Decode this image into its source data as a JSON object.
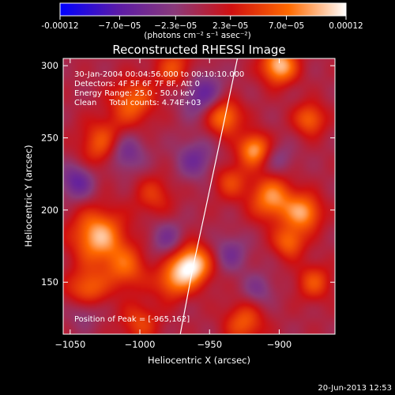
{
  "chart_data": {
    "type": "heatmap",
    "title": "Reconstructed RHESSI Image",
    "xlabel": "Heliocentric X (arcsec)",
    "ylabel": "Heliocentric Y (arcsec)",
    "xlim": [
      -1055,
      -860
    ],
    "ylim": [
      114,
      305
    ],
    "x_ticks": [
      -1050,
      -1000,
      -950,
      -900
    ],
    "x_tick_labels": [
      "−1050",
      "−1000",
      "−950",
      "−900"
    ],
    "y_ticks": [
      150,
      200,
      250,
      300
    ],
    "y_tick_labels": [
      "150",
      "200",
      "250",
      "300"
    ],
    "colorbar": {
      "min": -0.00012,
      "max": 0.00012,
      "ticks": [
        -0.00012,
        -7e-05,
        -2.3e-05,
        2.3e-05,
        7e-05,
        0.00012
      ],
      "tick_labels": [
        "-0.00012",
        "−7.0e−05",
        "−2.3e−05",
        "2.3e−05",
        "7.0e−05",
        "0.00012"
      ],
      "units": "(photons cm⁻² s⁻¹ asec⁻²)",
      "colors": [
        "#0000ff",
        "#5a1aa8",
        "#8a3a7a",
        "#d01010",
        "#ff6a00",
        "#ffffff"
      ]
    },
    "info_lines": [
      "30-Jan-2004 00:04:56.000 to 00:10:10.000",
      "Detectors: 4F 5F 6F 7F 8F, Att 0",
      "Energy Range: 25.0 - 50.0 keV",
      "Clean     Total counts: 4.74E+03"
    ],
    "peak_text": "Position of Peak = [-965,162]",
    "peak": {
      "x": -965,
      "y": 162
    },
    "limb_curve": [
      {
        "x": -971,
        "y": 114
      },
      {
        "x": -962,
        "y": 160
      },
      {
        "x": -953,
        "y": 200
      },
      {
        "x": -942,
        "y": 250
      },
      {
        "x": -930,
        "y": 305
      }
    ],
    "sources": [
      {
        "x": -963,
        "y": 162,
        "amp": 1.0,
        "sigma": 10
      },
      {
        "x": -977,
        "y": 150,
        "amp": 0.5,
        "sigma": 9
      },
      {
        "x": -1030,
        "y": 182,
        "amp": 0.8,
        "sigma": 13
      },
      {
        "x": -1010,
        "y": 160,
        "amp": 0.5,
        "sigma": 11
      },
      {
        "x": -1038,
        "y": 145,
        "amp": 0.55,
        "sigma": 10
      },
      {
        "x": -1025,
        "y": 245,
        "amp": 0.6,
        "sigma": 12
      },
      {
        "x": -1005,
        "y": 275,
        "amp": 0.55,
        "sigma": 11
      },
      {
        "x": -975,
        "y": 298,
        "amp": 0.45,
        "sigma": 10
      },
      {
        "x": -940,
        "y": 265,
        "amp": 0.7,
        "sigma": 9
      },
      {
        "x": -918,
        "y": 242,
        "amp": 0.75,
        "sigma": 8
      },
      {
        "x": -900,
        "y": 300,
        "amp": 0.85,
        "sigma": 9
      },
      {
        "x": -878,
        "y": 263,
        "amp": 0.55,
        "sigma": 8
      },
      {
        "x": -905,
        "y": 208,
        "amp": 0.7,
        "sigma": 11
      },
      {
        "x": -882,
        "y": 198,
        "amp": 0.7,
        "sigma": 9
      },
      {
        "x": -893,
        "y": 178,
        "amp": 0.55,
        "sigma": 8
      },
      {
        "x": -875,
        "y": 150,
        "amp": 0.45,
        "sigma": 9
      },
      {
        "x": -925,
        "y": 122,
        "amp": 0.5,
        "sigma": 10
      },
      {
        "x": -1000,
        "y": 122,
        "amp": 0.4,
        "sigma": 10
      },
      {
        "x": -935,
        "y": 220,
        "amp": 0.4,
        "sigma": 9
      },
      {
        "x": -990,
        "y": 210,
        "amp": 0.35,
        "sigma": 10
      },
      {
        "x": -1012,
        "y": 240,
        "amp": -0.6,
        "sigma": 10
      },
      {
        "x": -1045,
        "y": 220,
        "amp": -0.5,
        "sigma": 9
      },
      {
        "x": -960,
        "y": 235,
        "amp": -0.4,
        "sigma": 10
      },
      {
        "x": -955,
        "y": 280,
        "amp": -0.5,
        "sigma": 11
      },
      {
        "x": -980,
        "y": 180,
        "amp": -0.35,
        "sigma": 9
      },
      {
        "x": -935,
        "y": 170,
        "amp": -0.35,
        "sigma": 9
      },
      {
        "x": -915,
        "y": 145,
        "amp": -0.3,
        "sigma": 8
      },
      {
        "x": -1040,
        "y": 130,
        "amp": -0.3,
        "sigma": 8
      },
      {
        "x": -900,
        "y": 235,
        "amp": -0.25,
        "sigma": 8
      }
    ]
  },
  "footer": {
    "timestamp": "20-Jun-2013 12:53"
  }
}
